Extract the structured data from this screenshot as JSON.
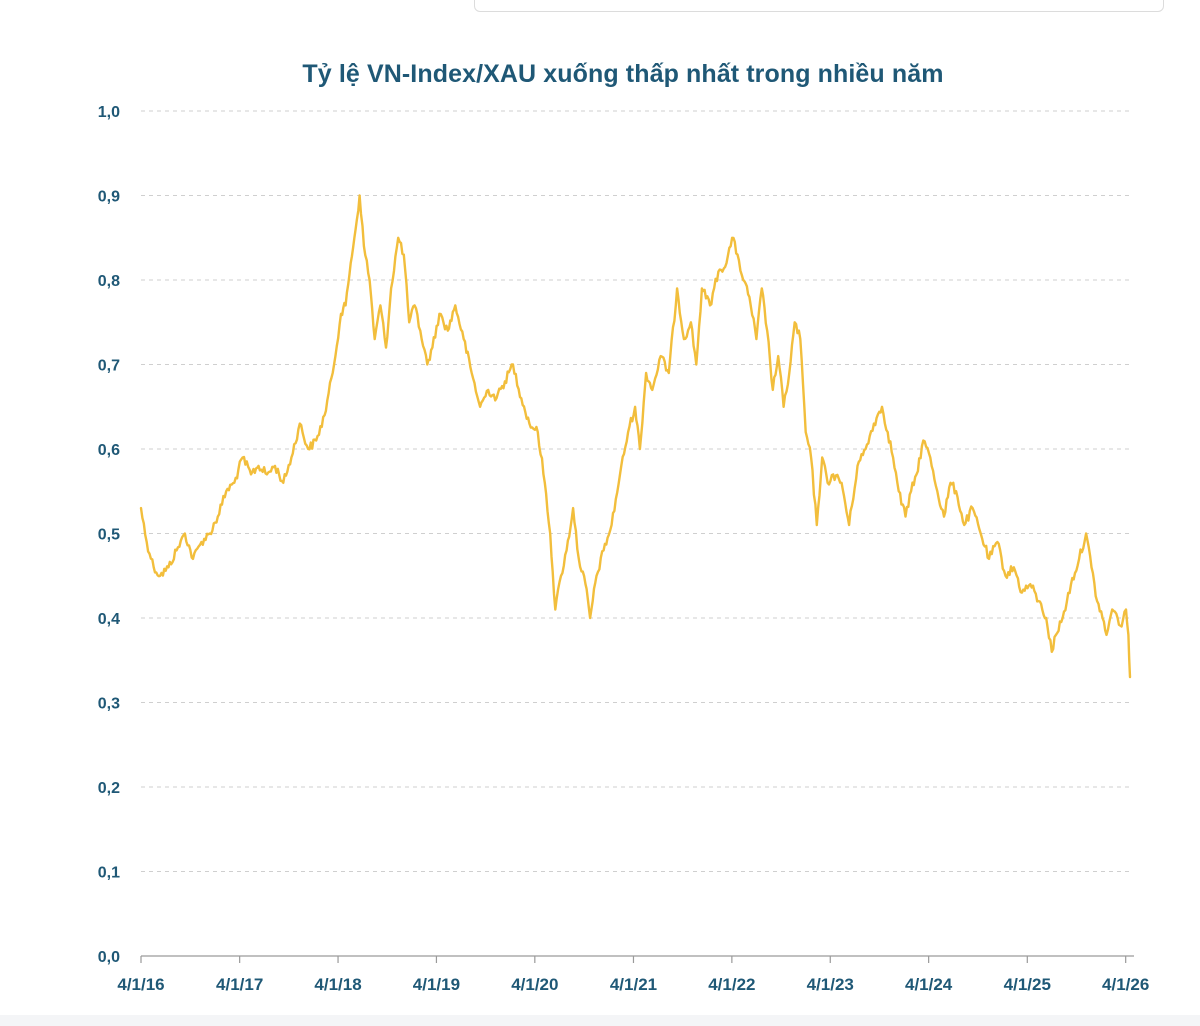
{
  "chart_data": {
    "type": "line",
    "title": "Tỷ lệ VN-Index/XAU xuống thấp nhất trong nhiều năm",
    "xlabel": "",
    "ylabel": "",
    "ylim": [
      0,
      1.0
    ],
    "y_ticks": [
      "0,0",
      "0,1",
      "0,2",
      "0,3",
      "0,4",
      "0,5",
      "0,6",
      "0,7",
      "0,8",
      "0,9",
      "1,0"
    ],
    "x_ticks": [
      "4/1/16",
      "4/1/17",
      "4/1/18",
      "4/1/19",
      "4/1/20",
      "4/1/21",
      "4/1/22",
      "4/1/23",
      "4/1/24",
      "4/1/25",
      "4/1/26"
    ],
    "x_range": [
      "2016-01-04",
      "2026-01-20"
    ],
    "grid": "horizontal dashed",
    "legend": "none",
    "line_color": "#f2be3c",
    "series": [
      {
        "x": [
          "2016-01-04",
          "2016-01-25",
          "2016-02-20",
          "2016-03-15",
          "2016-04-15",
          "2016-05-15",
          "2016-06-15",
          "2016-07-15",
          "2016-08-15",
          "2016-09-15",
          "2016-10-15",
          "2016-11-15",
          "2016-12-15",
          "2017-01-15",
          "2017-02-15",
          "2017-03-15",
          "2017-04-15",
          "2017-05-15",
          "2017-06-15",
          "2017-07-15",
          "2017-08-15",
          "2017-09-15",
          "2017-10-15",
          "2017-11-15",
          "2017-12-15",
          "2018-01-15",
          "2018-02-01",
          "2018-02-20",
          "2018-03-10",
          "2018-03-25",
          "2018-04-10",
          "2018-05-01",
          "2018-05-20",
          "2018-06-10",
          "2018-07-01",
          "2018-07-20",
          "2018-08-15",
          "2018-09-05",
          "2018-09-25",
          "2018-10-15",
          "2018-11-05",
          "2018-12-01",
          "2018-12-20",
          "2019-01-15",
          "2019-02-15",
          "2019-03-15",
          "2019-04-15",
          "2019-05-15",
          "2019-06-15",
          "2019-07-15",
          "2019-08-15",
          "2019-09-15",
          "2019-10-15",
          "2019-11-15",
          "2019-12-15",
          "2020-01-15",
          "2020-02-10",
          "2020-03-01",
          "2020-03-20",
          "2020-04-10",
          "2020-05-01",
          "2020-05-25",
          "2020-06-15",
          "2020-07-10",
          "2020-07-27",
          "2020-08-20",
          "2020-09-15",
          "2020-10-15",
          "2020-11-15",
          "2020-12-15",
          "2021-01-10",
          "2021-01-28",
          "2021-02-20",
          "2021-03-15",
          "2021-04-15",
          "2021-05-15",
          "2021-06-15",
          "2021-07-10",
          "2021-08-05",
          "2021-08-25",
          "2021-09-15",
          "2021-10-15",
          "2021-11-15",
          "2021-12-15",
          "2022-01-05",
          "2022-01-25",
          "2022-02-15",
          "2022-03-10",
          "2022-04-05",
          "2022-04-25",
          "2022-05-15",
          "2022-06-05",
          "2022-06-25",
          "2022-07-15",
          "2022-08-05",
          "2022-08-25",
          "2022-09-15",
          "2022-10-05",
          "2022-10-25",
          "2022-11-15",
          "2022-12-05",
          "2022-12-25",
          "2023-01-15",
          "2023-02-15",
          "2023-03-15",
          "2023-04-15",
          "2023-05-15",
          "2023-06-15",
          "2023-07-15",
          "2023-08-05",
          "2023-08-25",
          "2023-09-15",
          "2023-10-10",
          "2023-10-31",
          "2023-11-20",
          "2023-12-15",
          "2024-01-10",
          "2024-02-05",
          "2024-03-01",
          "2024-03-25",
          "2024-04-15",
          "2024-05-15",
          "2024-06-15",
          "2024-07-15",
          "2024-08-15",
          "2024-09-15",
          "2024-10-15",
          "2024-11-15",
          "2024-12-15",
          "2025-01-15",
          "2025-02-15",
          "2025-03-15",
          "2025-04-05",
          "2025-04-20",
          "2025-05-15",
          "2025-06-15",
          "2025-07-15",
          "2025-08-10",
          "2025-08-30",
          "2025-09-20",
          "2025-10-10",
          "2025-10-25",
          "2025-11-15",
          "2025-12-05",
          "2025-12-20",
          "2026-01-05",
          "2026-01-14",
          "2026-01-20"
        ],
        "values": [
          0.53,
          0.49,
          0.46,
          0.45,
          0.46,
          0.48,
          0.5,
          0.47,
          0.49,
          0.5,
          0.52,
          0.55,
          0.56,
          0.59,
          0.57,
          0.58,
          0.57,
          0.58,
          0.56,
          0.59,
          0.63,
          0.6,
          0.61,
          0.64,
          0.69,
          0.76,
          0.77,
          0.82,
          0.86,
          0.9,
          0.84,
          0.8,
          0.73,
          0.77,
          0.72,
          0.79,
          0.85,
          0.83,
          0.75,
          0.77,
          0.74,
          0.7,
          0.72,
          0.76,
          0.74,
          0.77,
          0.73,
          0.69,
          0.65,
          0.67,
          0.66,
          0.68,
          0.7,
          0.66,
          0.63,
          0.62,
          0.56,
          0.5,
          0.41,
          0.45,
          0.48,
          0.53,
          0.47,
          0.44,
          0.4,
          0.45,
          0.48,
          0.51,
          0.57,
          0.62,
          0.65,
          0.6,
          0.69,
          0.67,
          0.71,
          0.69,
          0.79,
          0.73,
          0.75,
          0.7,
          0.79,
          0.77,
          0.81,
          0.82,
          0.85,
          0.83,
          0.8,
          0.78,
          0.73,
          0.79,
          0.74,
          0.67,
          0.71,
          0.65,
          0.69,
          0.75,
          0.73,
          0.62,
          0.59,
          0.51,
          0.59,
          0.56,
          0.57,
          0.56,
          0.51,
          0.58,
          0.6,
          0.63,
          0.65,
          0.62,
          0.59,
          0.55,
          0.52,
          0.55,
          0.57,
          0.61,
          0.59,
          0.55,
          0.52,
          0.56,
          0.55,
          0.51,
          0.53,
          0.5,
          0.47,
          0.49,
          0.45,
          0.46,
          0.43,
          0.44,
          0.42,
          0.4,
          0.36,
          0.38,
          0.4,
          0.44,
          0.47,
          0.5,
          0.46,
          0.42,
          0.4,
          0.38,
          0.41,
          0.4,
          0.39,
          0.41,
          0.38,
          0.33
        ]
      }
    ]
  }
}
